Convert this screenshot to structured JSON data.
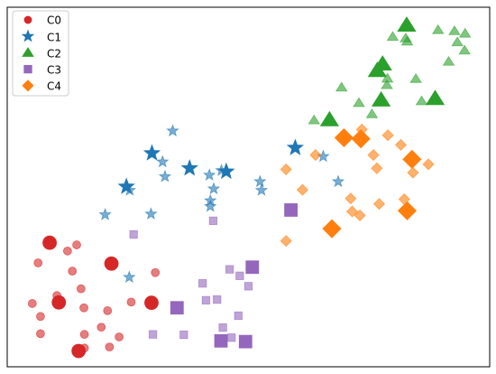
{
  "chart_data": {
    "type": "scatter",
    "title": "",
    "xlabel": "",
    "ylabel": "",
    "xlim": [
      0,
      100
    ],
    "ylim": [
      0,
      100
    ],
    "grid": false,
    "axes_ticks": false,
    "legend": {
      "position": "top-left"
    },
    "series": [
      {
        "name": "C0",
        "marker": "circle",
        "color": "#d62728",
        "points": [
          [
            8.8,
            34.5,
            "L"
          ],
          [
            14.4,
            33.9,
            "S"
          ],
          [
            12.5,
            32.2,
            "S"
          ],
          [
            21.6,
            28.7,
            "L"
          ],
          [
            6.4,
            28.9,
            "S"
          ],
          [
            13.5,
            26.6,
            "S"
          ],
          [
            30.7,
            26.2,
            "S"
          ],
          [
            15.3,
            21.7,
            "S"
          ],
          [
            10.3,
            19.8,
            "S"
          ],
          [
            25.7,
            18.0,
            "S"
          ],
          [
            10.7,
            17.9,
            "L"
          ],
          [
            29.9,
            17.8,
            "L"
          ],
          [
            5.2,
            17.6,
            "S"
          ],
          [
            15.9,
            16.4,
            "S"
          ],
          [
            20.8,
            15.6,
            "S"
          ],
          [
            6.9,
            14.0,
            "S"
          ],
          [
            19.5,
            11.0,
            "S"
          ],
          [
            16.0,
            9.0,
            "S"
          ],
          [
            6.9,
            9.2,
            "S"
          ],
          [
            23.2,
            8.3,
            "S"
          ],
          [
            21.2,
            5.5,
            "S"
          ],
          [
            16.0,
            5.2,
            "S"
          ],
          [
            14.8,
            4.4,
            "L"
          ]
        ]
      },
      {
        "name": "C1",
        "marker": "star",
        "color": "#1f77b4",
        "points": [
          [
            34.3,
            65.6,
            "S"
          ],
          [
            30.0,
            59.4,
            "L"
          ],
          [
            59.7,
            60.9,
            "L"
          ],
          [
            32.2,
            57.0,
            "S"
          ],
          [
            37.8,
            55.2,
            "L"
          ],
          [
            65.5,
            58.5,
            "S"
          ],
          [
            44.4,
            54.6,
            "S"
          ],
          [
            45.4,
            54.3,
            "L"
          ],
          [
            41.9,
            53.3,
            "S"
          ],
          [
            32.7,
            52.9,
            "S"
          ],
          [
            68.6,
            51.5,
            "S"
          ],
          [
            52.4,
            51.5,
            "S"
          ],
          [
            24.7,
            50.1,
            "L"
          ],
          [
            42.8,
            49.5,
            "S"
          ],
          [
            52.7,
            49.1,
            "S"
          ],
          [
            25.4,
            49.1,
            "S"
          ],
          [
            42.1,
            46.2,
            "S"
          ],
          [
            42.1,
            44.6,
            "S"
          ],
          [
            20.3,
            42.3,
            "S"
          ],
          [
            29.8,
            42.5,
            "S"
          ],
          [
            25.3,
            24.9,
            "S"
          ]
        ]
      },
      {
        "name": "C2",
        "marker": "triangle",
        "color": "#2ca02c",
        "points": [
          [
            82.8,
            95.0,
            "L"
          ],
          [
            79.9,
            91.8,
            "S"
          ],
          [
            82.6,
            91.4,
            "S"
          ],
          [
            89.3,
            93.7,
            "S"
          ],
          [
            92.7,
            93.4,
            "S"
          ],
          [
            82.9,
            90.5,
            "S"
          ],
          [
            94.9,
            92.7,
            "S"
          ],
          [
            93.3,
            90.3,
            "S"
          ],
          [
            94.8,
            88.0,
            "S"
          ],
          [
            91.5,
            84.9,
            "S"
          ],
          [
            77.8,
            84.2,
            "L"
          ],
          [
            76.7,
            82.4,
            "L"
          ],
          [
            84.7,
            80.1,
            "S"
          ],
          [
            78.8,
            80.2,
            "S"
          ],
          [
            69.3,
            77.7,
            "S"
          ],
          [
            78.7,
            78.4,
            "S"
          ],
          [
            77.5,
            74.2,
            "L"
          ],
          [
            72.9,
            73.4,
            "S"
          ],
          [
            85.9,
            73.9,
            "S"
          ],
          [
            88.7,
            74.6,
            "L"
          ],
          [
            75.6,
            70.3,
            "S"
          ],
          [
            63.6,
            68.6,
            "S"
          ],
          [
            66.8,
            68.7,
            "L"
          ]
        ]
      },
      {
        "name": "C3",
        "marker": "square",
        "color": "#9467bd",
        "points": [
          [
            58.8,
            43.6,
            "L"
          ],
          [
            42.7,
            40.6,
            "S"
          ],
          [
            26.2,
            36.8,
            "S"
          ],
          [
            46.1,
            27.1,
            "S"
          ],
          [
            50.8,
            27.7,
            "L"
          ],
          [
            48.2,
            25.3,
            "S"
          ],
          [
            40.5,
            23.2,
            "S"
          ],
          [
            50.0,
            22.4,
            "S"
          ],
          [
            41.2,
            18.5,
            "S"
          ],
          [
            43.5,
            18.7,
            "S"
          ],
          [
            35.2,
            16.4,
            "L"
          ],
          [
            47.9,
            14.2,
            "S"
          ],
          [
            44.7,
            10.9,
            "S"
          ],
          [
            30.2,
            9.0,
            "S"
          ],
          [
            36.6,
            8.9,
            "S"
          ],
          [
            44.3,
            7.2,
            "L"
          ],
          [
            46.5,
            8.1,
            "S"
          ],
          [
            49.4,
            7.0,
            "L"
          ]
        ]
      },
      {
        "name": "C4",
        "marker": "diamond",
        "color": "#ff7f0e",
        "points": [
          [
            73.5,
            66.0,
            "S"
          ],
          [
            69.8,
            63.7,
            "L"
          ],
          [
            73.3,
            63.4,
            "L"
          ],
          [
            78.9,
            64.4,
            "S"
          ],
          [
            81.6,
            61.7,
            "S"
          ],
          [
            63.9,
            58.9,
            "S"
          ],
          [
            75.9,
            58.9,
            "S"
          ],
          [
            83.9,
            57.7,
            "L"
          ],
          [
            87.3,
            56.3,
            "S"
          ],
          [
            76.6,
            55.2,
            "S"
          ],
          [
            57.8,
            54.9,
            "S"
          ],
          [
            84.1,
            54.0,
            "S"
          ],
          [
            61.2,
            49.2,
            "S"
          ],
          [
            71.2,
            46.8,
            "S"
          ],
          [
            77.1,
            45.3,
            "S"
          ],
          [
            82.3,
            46.6,
            "S"
          ],
          [
            71.5,
            43.2,
            "S"
          ],
          [
            73.1,
            42.1,
            "S"
          ],
          [
            82.9,
            43.4,
            "L"
          ],
          [
            67.3,
            38.4,
            "L"
          ],
          [
            57.8,
            35.0,
            "S"
          ]
        ]
      }
    ]
  }
}
